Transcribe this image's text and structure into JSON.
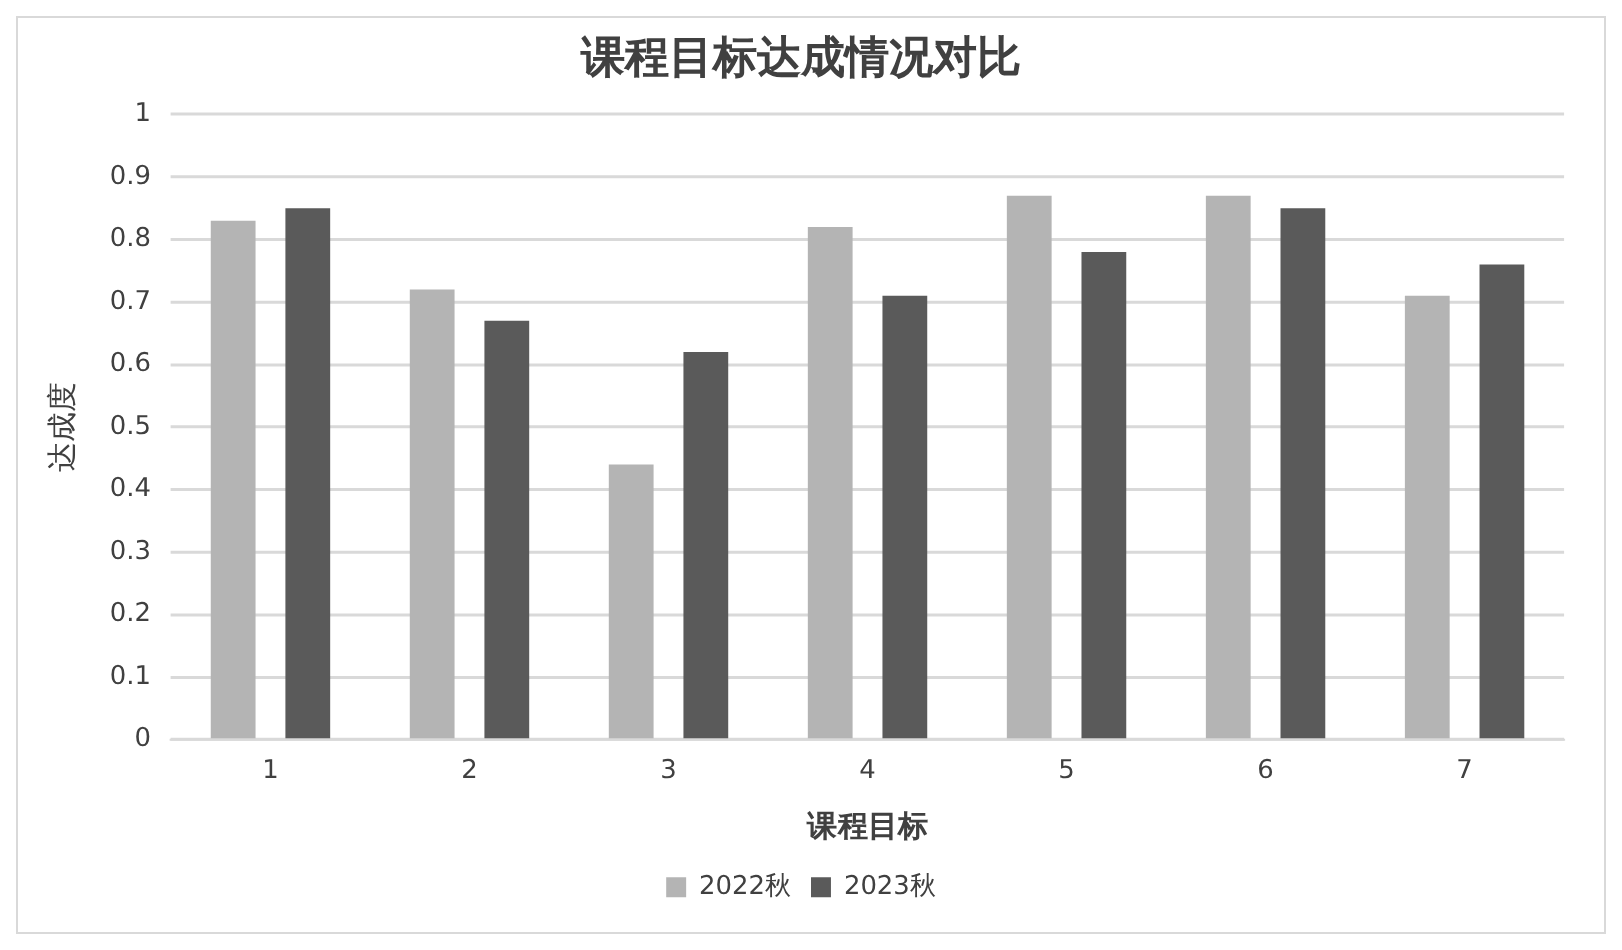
{
  "chart_data": {
    "type": "bar",
    "title": "课程目标达成情况对比",
    "xlabel": "课程目标",
    "ylabel": "达成度",
    "categories": [
      "1",
      "2",
      "3",
      "4",
      "5",
      "6",
      "7"
    ],
    "series": [
      {
        "name": "2022秋",
        "color": "#b4b4b4",
        "values": [
          0.83,
          0.72,
          0.44,
          0.82,
          0.87,
          0.87,
          0.71
        ]
      },
      {
        "name": "2023秋",
        "color": "#5a5a5a",
        "values": [
          0.85,
          0.67,
          0.62,
          0.71,
          0.78,
          0.85,
          0.76
        ]
      }
    ],
    "ylim": [
      0,
      1
    ],
    "yticks": [
      0,
      0.1,
      0.2,
      0.3,
      0.4,
      0.5,
      0.6,
      0.7,
      0.8,
      0.9,
      1
    ],
    "grid": "y",
    "legend": "bottom"
  }
}
